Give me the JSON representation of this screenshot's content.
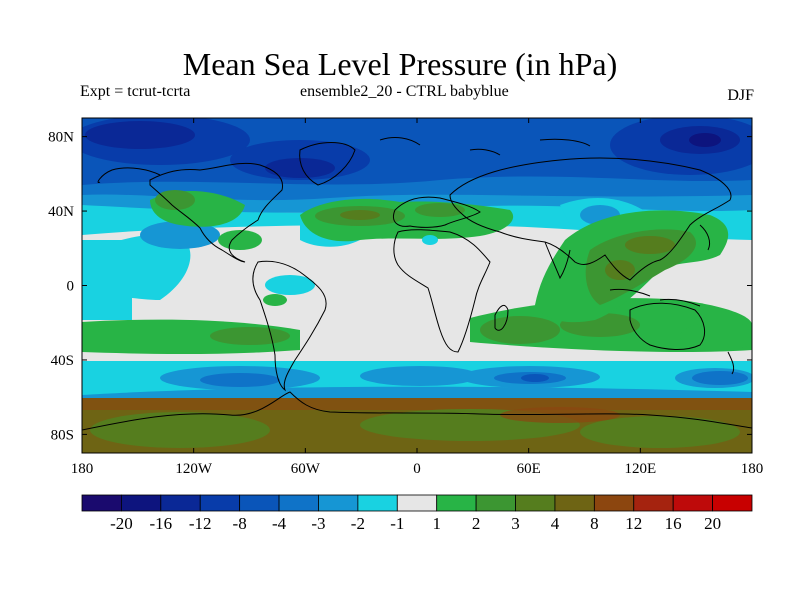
{
  "title": "Mean Sea Level Pressure (in hPa)",
  "left_subtitle": "Expt = tcrut-tcrta",
  "center_subtitle": "ensemble2_20 - CTRL babyblue",
  "right_subtitle": "DJF",
  "map": {
    "projection": "cylindrical-equidistant",
    "lon_range": [
      -180,
      180
    ],
    "lat_range": [
      -90,
      90
    ],
    "x_ticks": [
      "180",
      "120W",
      "60W",
      "0",
      "60E",
      "120E",
      "180"
    ],
    "y_ticks": [
      "80N",
      "40N",
      "0",
      "40S",
      "80S"
    ]
  },
  "colorbar": {
    "labels": [
      "-20",
      "-16",
      "-12",
      "-8",
      "-4",
      "-3",
      "-2",
      "-1",
      "1",
      "2",
      "3",
      "4",
      "8",
      "12",
      "16",
      "20"
    ],
    "colors": [
      "#1a0a6e",
      "#0d147e",
      "#0a2896",
      "#083caa",
      "#0a55b9",
      "#0f73c8",
      "#1696d4",
      "#19d2e1",
      "#e6e6e6",
      "#28b446",
      "#3c9632",
      "#557d1e",
      "#6e6414",
      "#8c460f",
      "#a5230f",
      "#be0a0a",
      "#c80000"
    ]
  }
}
